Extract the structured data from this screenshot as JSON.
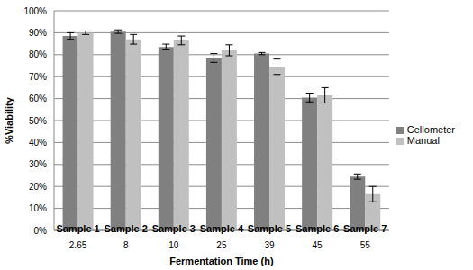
{
  "chart_data": {
    "type": "bar",
    "x_label": "Fermentation Time (h)",
    "y_label": "%Viability",
    "categories": [
      "2.65",
      "8",
      "10",
      "25",
      "39",
      "45",
      "55"
    ],
    "annotations": [
      "Sample 1",
      "Sample 2",
      "Sample 3",
      "Sample 4",
      "Sample 5",
      "Sample 6",
      "Sample 7"
    ],
    "series": [
      {
        "name": "Cellometer",
        "color": "#808080",
        "values": [
          88.5,
          90.5,
          83.5,
          78.5,
          80.5,
          60.5,
          24.5
        ],
        "errors": [
          1.5,
          0.8,
          1.3,
          2,
          0.5,
          2,
          1.2
        ]
      },
      {
        "name": "Manual",
        "color": "#c0c0c0",
        "values": [
          90,
          87,
          86.5,
          82,
          74.5,
          61.5,
          16.5
        ],
        "errors": [
          0.8,
          2.2,
          2,
          2.5,
          3.5,
          3.5,
          3.5
        ]
      }
    ],
    "ylim": [
      0,
      100
    ],
    "yticks": [
      {
        "value": 0,
        "label": "0%"
      },
      {
        "value": 10,
        "label": "10%"
      },
      {
        "value": 20,
        "label": "20%"
      },
      {
        "value": 30,
        "label": "30%"
      },
      {
        "value": 40,
        "label": "40%"
      },
      {
        "value": 50,
        "label": "50%"
      },
      {
        "value": 60,
        "label": "60%"
      },
      {
        "value": 70,
        "label": "70%"
      },
      {
        "value": 80,
        "label": "80%"
      },
      {
        "value": 90,
        "label": "90%"
      },
      {
        "value": 100,
        "label": "100%"
      }
    ],
    "grid": true,
    "legend": "right"
  }
}
